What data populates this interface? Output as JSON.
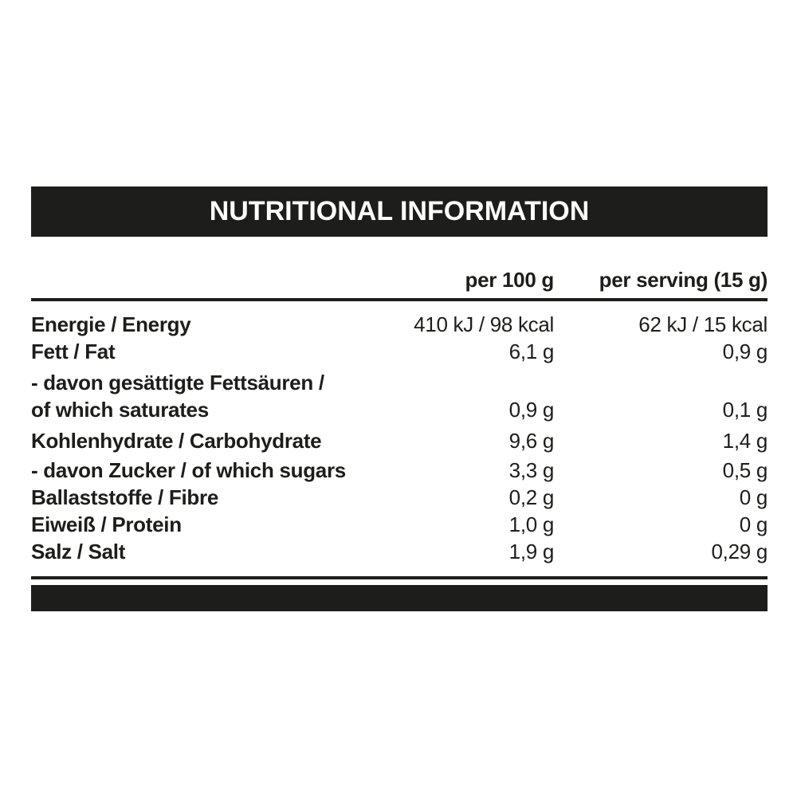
{
  "colors": {
    "ink": "#1d1d1b",
    "background": "#ffffff",
    "title_text": "#ffffff"
  },
  "title_bar": {
    "title": "NUTRITIONAL INFORMATION"
  },
  "table": {
    "column_headers": {
      "per_100g": "per 100 g",
      "per_serving": "per serving (15 g)"
    },
    "rows": [
      {
        "label": "Energie / Energy",
        "per_100g": "410 kJ / 98 kcal",
        "per_serving": "62 kJ / 15 kcal"
      },
      {
        "label": "Fett / Fat",
        "per_100g": "6,1 g",
        "per_serving": "0,9 g"
      },
      {
        "label_line1": "- davon gesättigte Fettsäuren /",
        "label_line2": "of which saturates",
        "per_100g": "0,9 g",
        "per_serving": "0,1 g"
      },
      {
        "label": "Kohlenhydrate / Carbohydrate",
        "per_100g": "9,6 g",
        "per_serving": "1,4 g"
      },
      {
        "label": "- davon Zucker / of which sugars",
        "per_100g": "3,3 g",
        "per_serving": "0,5 g"
      },
      {
        "label": "Ballaststoffe / Fibre",
        "per_100g": "0,2 g",
        "per_serving": "0 g"
      },
      {
        "label": "Eiweiß / Protein",
        "per_100g": "1,0 g",
        "per_serving": "0 g"
      },
      {
        "label": "Salz / Salt",
        "per_100g": "1,9 g",
        "per_serving": "0,29 g"
      }
    ]
  }
}
